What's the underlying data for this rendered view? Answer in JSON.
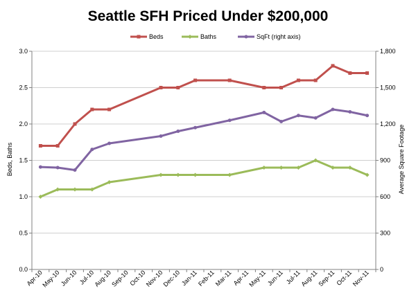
{
  "chart_data": {
    "type": "line",
    "title": "Seattle SFH Priced Under $200,000",
    "ylabel_left": "Beds, Baths",
    "ylabel_right": "Average Square Footage",
    "categories": [
      "Apr-10",
      "May-10",
      "Jun-10",
      "Jul-10",
      "Aug-10",
      "Sep-10",
      "Oct-10",
      "Nov-10",
      "Dec-10",
      "Jan-11",
      "Feb-11",
      "Mar-11",
      "Apr-11",
      "May-11",
      "Jun-11",
      "Jul-11",
      "Aug-11",
      "Sep-11",
      "Oct-11",
      "Nov-11"
    ],
    "left_axis": {
      "min": 0,
      "max": 3,
      "ticks": [
        "0.0",
        "0.5",
        "1.0",
        "1.5",
        "2.0",
        "2.5",
        "3.0"
      ]
    },
    "right_axis": {
      "min": 0,
      "max": 1800,
      "ticks": [
        "0",
        "300",
        "600",
        "900",
        "1,200",
        "1,500",
        "1,800"
      ]
    },
    "legend_position": "top",
    "series": [
      {
        "name": "Beds",
        "axis": "left",
        "color": "#c0504d",
        "values": [
          1.7,
          1.7,
          2.0,
          2.2,
          2.2,
          null,
          null,
          2.5,
          2.5,
          2.6,
          null,
          2.6,
          null,
          2.5,
          2.5,
          2.6,
          2.6,
          2.8,
          2.7,
          2.7
        ]
      },
      {
        "name": "Baths",
        "axis": "left",
        "color": "#9bbb59",
        "values": [
          1.0,
          1.1,
          1.1,
          1.1,
          1.2,
          null,
          null,
          1.3,
          1.3,
          1.3,
          null,
          1.3,
          null,
          1.4,
          1.4,
          1.4,
          1.5,
          1.4,
          1.4,
          1.3
        ]
      },
      {
        "name": "SqFt (right axis)",
        "axis": "right",
        "color": "#8064a2",
        "values": [
          845,
          840,
          820,
          990,
          1040,
          null,
          null,
          1100,
          1140,
          1170,
          null,
          1230,
          null,
          1295,
          1220,
          1270,
          1250,
          1320,
          1300,
          1270
        ]
      }
    ]
  }
}
